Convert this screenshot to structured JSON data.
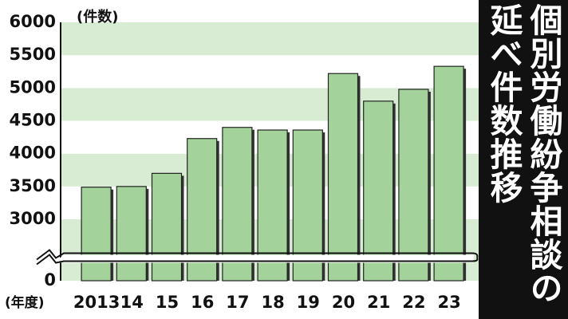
{
  "chart_data": {
    "type": "bar",
    "title": "個別労働紛争相談の延べ件数推移",
    "y_unit_label": "(件数)",
    "x_unit_label": "(年度)",
    "categories": [
      "2013",
      "14",
      "15",
      "16",
      "17",
      "18",
      "19",
      "20",
      "21",
      "22",
      "23"
    ],
    "values": [
      3490,
      3500,
      3700,
      4230,
      4400,
      4360,
      4360,
      5220,
      4800,
      4980,
      5330
    ],
    "color": "#a3d39a",
    "ylim": [
      0,
      6000
    ],
    "yticks": [
      0,
      3000,
      3500,
      4000,
      4500,
      5000,
      5500,
      6000
    ],
    "axis_break": [
      0,
      3000
    ],
    "grid": true
  }
}
